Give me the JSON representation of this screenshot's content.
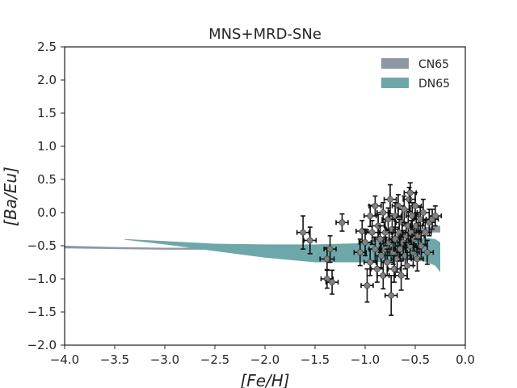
{
  "chart_data": {
    "type": "scatter",
    "title": "MNS+MRD-SNe",
    "xlabel": "[Fe/H]",
    "ylabel": "[Ba/Eu]",
    "xlim": [
      -4.0,
      0.0
    ],
    "ylim": [
      -2.0,
      2.5
    ],
    "xticks": [
      -4.0,
      -3.5,
      -3.0,
      -2.5,
      -2.0,
      -1.5,
      -1.0,
      -0.5,
      0.0
    ],
    "xtick_labels": [
      "−4.0",
      "−3.5",
      "−3.0",
      "−2.5",
      "−2.0",
      "−1.5",
      "−1.0",
      "−0.5",
      "0.0"
    ],
    "yticks": [
      -2.0,
      -1.5,
      -1.0,
      -0.5,
      0.0,
      0.5,
      1.0,
      1.5,
      2.0,
      2.5
    ],
    "ytick_labels": [
      "−2.0",
      "−1.5",
      "−1.0",
      "−0.5",
      "0.0",
      "0.5",
      "1.0",
      "1.5",
      "2.0",
      "2.5"
    ],
    "grid": false,
    "legend_position": "top-right",
    "bands": [
      {
        "name": "CN65",
        "color": "#8e98a3",
        "x": [
          -4.0,
          -3.5,
          -3.0,
          -2.5,
          -2.0,
          -1.5,
          -1.2,
          -1.0,
          -0.8,
          -0.6,
          -0.5,
          -0.4,
          -0.3,
          -0.25
        ],
        "upper": [
          -0.5,
          -0.52,
          -0.53,
          -0.53,
          -0.52,
          -0.5,
          -0.48,
          -0.45,
          -0.38,
          -0.3,
          -0.25,
          -0.22,
          -0.2,
          -0.2
        ],
        "lower": [
          -0.54,
          -0.55,
          -0.56,
          -0.56,
          -0.56,
          -0.55,
          -0.53,
          -0.5,
          -0.45,
          -0.38,
          -0.33,
          -0.3,
          -0.3,
          -0.3
        ]
      },
      {
        "name": "DN65",
        "color": "#6ea7a9",
        "x": [
          -3.4,
          -3.0,
          -2.5,
          -2.0,
          -1.5,
          -1.0,
          -0.8,
          -0.6,
          -0.5,
          -0.4,
          -0.3,
          -0.25
        ],
        "upper": [
          -0.4,
          -0.43,
          -0.47,
          -0.48,
          -0.48,
          -0.46,
          -0.44,
          -0.42,
          -0.4,
          -0.38,
          -0.4,
          -0.45
        ],
        "lower": [
          -0.41,
          -0.48,
          -0.58,
          -0.68,
          -0.75,
          -0.75,
          -0.74,
          -0.72,
          -0.72,
          -0.74,
          -0.8,
          -0.9
        ]
      }
    ],
    "points": [
      {
        "x": -1.62,
        "y": -0.3,
        "xerr": 0.06,
        "yerr": 0.25
      },
      {
        "x": -1.55,
        "y": -0.42,
        "xerr": 0.06,
        "yerr": 0.2
      },
      {
        "x": -1.38,
        "y": -0.7,
        "xerr": 0.07,
        "yerr": 0.17
      },
      {
        "x": -1.35,
        "y": -0.55,
        "xerr": 0.06,
        "yerr": 0.2
      },
      {
        "x": -1.38,
        "y": -1.0,
        "xerr": 0.06,
        "yerr": 0.14
      },
      {
        "x": -1.33,
        "y": -1.05,
        "xerr": 0.06,
        "yerr": 0.18
      },
      {
        "x": -1.23,
        "y": -0.15,
        "xerr": 0.06,
        "yerr": 0.13
      },
      {
        "x": -1.05,
        "y": -0.6,
        "xerr": 0.06,
        "yerr": 0.2
      },
      {
        "x": -1.03,
        "y": -0.28,
        "xerr": 0.06,
        "yerr": 0.16
      },
      {
        "x": -1.0,
        "y": -0.45,
        "xerr": 0.06,
        "yerr": 0.2
      },
      {
        "x": -0.98,
        "y": -1.1,
        "xerr": 0.06,
        "yerr": 0.25
      },
      {
        "x": -0.95,
        "y": -0.05,
        "xerr": 0.06,
        "yerr": 0.16
      },
      {
        "x": -0.95,
        "y": -0.75,
        "xerr": 0.06,
        "yerr": 0.2
      },
      {
        "x": -0.93,
        "y": -0.3,
        "xerr": 0.06,
        "yerr": 0.18
      },
      {
        "x": -0.9,
        "y": 0.1,
        "xerr": 0.06,
        "yerr": 0.15
      },
      {
        "x": -0.9,
        "y": -0.55,
        "xerr": 0.06,
        "yerr": 0.18
      },
      {
        "x": -0.88,
        "y": -0.85,
        "xerr": 0.06,
        "yerr": 0.2
      },
      {
        "x": -0.87,
        "y": -0.2,
        "xerr": 0.06,
        "yerr": 0.17
      },
      {
        "x": -0.85,
        "y": -0.4,
        "xerr": 0.06,
        "yerr": 0.2
      },
      {
        "x": -0.84,
        "y": -0.65,
        "xerr": 0.06,
        "yerr": 0.18
      },
      {
        "x": -0.82,
        "y": 0.0,
        "xerr": 0.06,
        "yerr": 0.15
      },
      {
        "x": -0.82,
        "y": -0.95,
        "xerr": 0.06,
        "yerr": 0.2
      },
      {
        "x": -0.8,
        "y": -0.3,
        "xerr": 0.06,
        "yerr": 0.2
      },
      {
        "x": -0.8,
        "y": -0.55,
        "xerr": 0.06,
        "yerr": 0.18
      },
      {
        "x": -0.78,
        "y": -0.75,
        "xerr": 0.06,
        "yerr": 0.2
      },
      {
        "x": -0.77,
        "y": -0.1,
        "xerr": 0.06,
        "yerr": 0.17
      },
      {
        "x": -0.76,
        "y": -0.45,
        "xerr": 0.06,
        "yerr": 0.2
      },
      {
        "x": -0.75,
        "y": 0.2,
        "xerr": 0.06,
        "yerr": 0.22
      },
      {
        "x": -0.74,
        "y": -1.25,
        "xerr": 0.06,
        "yerr": 0.3
      },
      {
        "x": -0.73,
        "y": -0.25,
        "xerr": 0.06,
        "yerr": 0.2
      },
      {
        "x": -0.72,
        "y": -0.6,
        "xerr": 0.06,
        "yerr": 0.18
      },
      {
        "x": -0.71,
        "y": -0.85,
        "xerr": 0.06,
        "yerr": 0.2
      },
      {
        "x": -0.7,
        "y": -0.05,
        "xerr": 0.06,
        "yerr": 0.2
      },
      {
        "x": -0.7,
        "y": -0.4,
        "xerr": 0.06,
        "yerr": 0.18
      },
      {
        "x": -0.68,
        "y": -0.7,
        "xerr": 0.06,
        "yerr": 0.2
      },
      {
        "x": -0.67,
        "y": 0.1,
        "xerr": 0.06,
        "yerr": 0.17
      },
      {
        "x": -0.66,
        "y": -0.3,
        "xerr": 0.06,
        "yerr": 0.2
      },
      {
        "x": -0.65,
        "y": -0.55,
        "xerr": 0.06,
        "yerr": 0.18
      },
      {
        "x": -0.64,
        "y": -0.95,
        "xerr": 0.06,
        "yerr": 0.22
      },
      {
        "x": -0.63,
        "y": -0.15,
        "xerr": 0.06,
        "yerr": 0.2
      },
      {
        "x": -0.62,
        "y": -0.45,
        "xerr": 0.06,
        "yerr": 0.18
      },
      {
        "x": -0.61,
        "y": 0.05,
        "xerr": 0.06,
        "yerr": 0.2
      },
      {
        "x": -0.6,
        "y": -0.65,
        "xerr": 0.06,
        "yerr": 0.2
      },
      {
        "x": -0.59,
        "y": -0.35,
        "xerr": 0.06,
        "yerr": 0.18
      },
      {
        "x": -0.58,
        "y": -0.8,
        "xerr": 0.06,
        "yerr": 0.2
      },
      {
        "x": -0.57,
        "y": -0.2,
        "xerr": 0.06,
        "yerr": 0.2
      },
      {
        "x": -0.56,
        "y": 0.2,
        "xerr": 0.06,
        "yerr": 0.18
      },
      {
        "x": -0.55,
        "y": -0.5,
        "xerr": 0.06,
        "yerr": 0.2
      },
      {
        "x": -0.55,
        "y": 0.3,
        "xerr": 0.06,
        "yerr": 0.15
      },
      {
        "x": -0.54,
        "y": -0.3,
        "xerr": 0.06,
        "yerr": 0.18
      },
      {
        "x": -0.53,
        "y": -0.05,
        "xerr": 0.06,
        "yerr": 0.2
      },
      {
        "x": -0.52,
        "y": -0.6,
        "xerr": 0.06,
        "yerr": 0.2
      },
      {
        "x": -0.51,
        "y": -0.4,
        "xerr": 0.06,
        "yerr": 0.18
      },
      {
        "x": -0.5,
        "y": 0.1,
        "xerr": 0.06,
        "yerr": 0.2
      },
      {
        "x": -0.49,
        "y": -0.2,
        "xerr": 0.06,
        "yerr": 0.2
      },
      {
        "x": -0.48,
        "y": -0.7,
        "xerr": 0.06,
        "yerr": 0.18
      },
      {
        "x": -0.47,
        "y": -0.35,
        "xerr": 0.06,
        "yerr": 0.2
      },
      {
        "x": -0.45,
        "y": -0.1,
        "xerr": 0.06,
        "yerr": 0.18
      },
      {
        "x": -0.44,
        "y": -0.5,
        "xerr": 0.06,
        "yerr": 0.2
      },
      {
        "x": -0.42,
        "y": 0.0,
        "xerr": 0.06,
        "yerr": 0.2
      },
      {
        "x": -0.4,
        "y": -0.3,
        "xerr": 0.06,
        "yerr": 0.18
      },
      {
        "x": -0.38,
        "y": -0.6,
        "xerr": 0.06,
        "yerr": 0.18
      },
      {
        "x": -0.36,
        "y": -0.15,
        "xerr": 0.06,
        "yerr": 0.2
      },
      {
        "x": -0.33,
        "y": -0.1,
        "xerr": 0.06,
        "yerr": 0.15
      },
      {
        "x": -0.3,
        "y": -0.05,
        "xerr": 0.06,
        "yerr": 0.15
      }
    ]
  }
}
